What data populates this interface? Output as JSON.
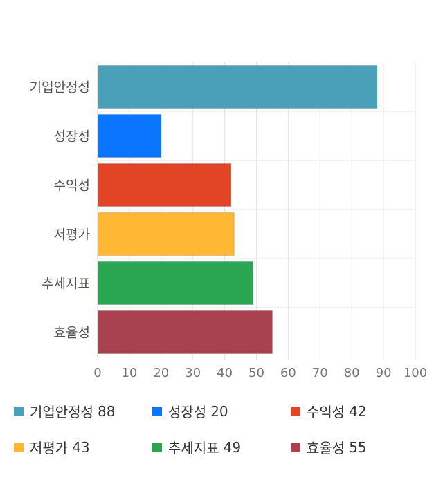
{
  "chart_data": {
    "type": "bar",
    "orientation": "horizontal",
    "categories": [
      "기업안정성",
      "성장성",
      "수익성",
      "저평가",
      "추세지표",
      "효율성"
    ],
    "values": [
      88,
      20,
      42,
      43,
      49,
      55
    ],
    "colors": [
      "#4aa0b8",
      "#0a76ff",
      "#e24526",
      "#ffb833",
      "#2aa653",
      "#a8424e"
    ],
    "xlim": [
      0,
      100
    ],
    "xticks": [
      0,
      10,
      20,
      30,
      40,
      50,
      60,
      70,
      80,
      90,
      100
    ],
    "grid": true,
    "legend_position": "bottom",
    "title": "",
    "xlabel": "",
    "ylabel": ""
  },
  "legend": [
    {
      "label": "기업안정성",
      "value": "88",
      "color": "#4aa0b8"
    },
    {
      "label": "성장성",
      "value": "20",
      "color": "#0a76ff"
    },
    {
      "label": "수익성",
      "value": "42",
      "color": "#e24526"
    },
    {
      "label": "저평가",
      "value": "43",
      "color": "#ffb833"
    },
    {
      "label": "추세지표",
      "value": "49",
      "color": "#2aa653"
    },
    {
      "label": "효율성",
      "value": "55",
      "color": "#a8424e"
    }
  ]
}
